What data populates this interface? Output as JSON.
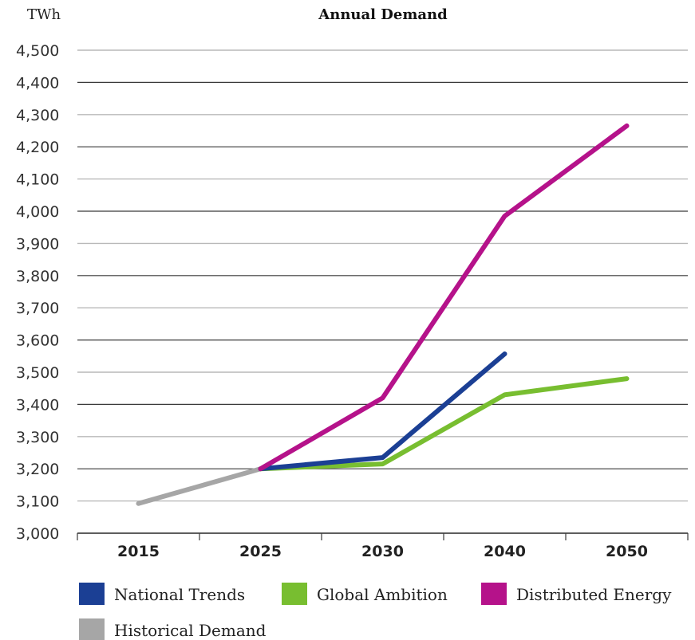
{
  "chart_data": {
    "type": "line",
    "title": "Annual Demand",
    "ylabel": "TWh",
    "xlabel": "",
    "categories": [
      "2015",
      "2025",
      "2030",
      "2040",
      "2050"
    ],
    "ylim": [
      3000,
      4500
    ],
    "yticks": [
      3000,
      3100,
      3200,
      3300,
      3400,
      3500,
      3600,
      3700,
      3800,
      3900,
      4000,
      4100,
      4200,
      4300,
      4400,
      4500
    ],
    "ytick_labels": [
      "3,000",
      "3,100",
      "3,200",
      "3,300",
      "3,400",
      "3,500",
      "3,600",
      "3,700",
      "3,800",
      "3,900",
      "4,000",
      "4,100",
      "4,200",
      "4,300",
      "4,400",
      "4,500"
    ],
    "grid": true,
    "legend_position": "bottom",
    "series": [
      {
        "name": "National Trends",
        "color": "#1b3f94",
        "values": [
          null,
          3200,
          3235,
          3557,
          null
        ]
      },
      {
        "name": "Global Ambition",
        "color": "#78be30",
        "values": [
          null,
          3200,
          3215,
          3430,
          3480
        ]
      },
      {
        "name": "Distributed Energy",
        "color": "#b5128a",
        "values": [
          null,
          3200,
          3420,
          3985,
          4265
        ]
      },
      {
        "name": "Historical Demand",
        "color": "#a6a6a6",
        "values": [
          3092,
          3200,
          null,
          null,
          null
        ]
      }
    ],
    "draw_order": [
      3,
      1,
      0,
      2
    ]
  }
}
